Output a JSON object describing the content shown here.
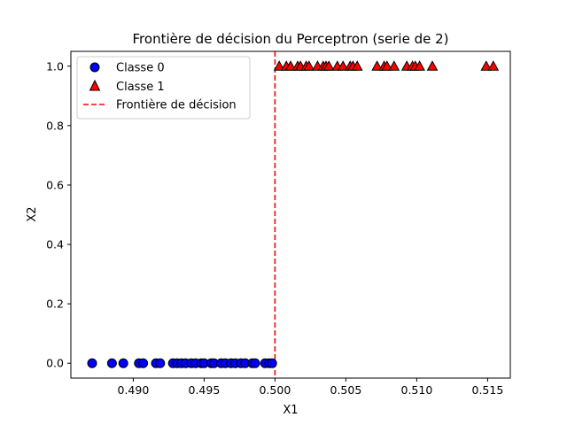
{
  "chart_data": {
    "type": "scatter",
    "title": "Frontière de décision du Perceptron (serie de 2)",
    "xlabel": "X1",
    "ylabel": "X2",
    "xlim": [
      0.4856,
      0.5166
    ],
    "ylim": [
      -0.05,
      1.05
    ],
    "xticks": [
      0.49,
      0.495,
      0.5,
      0.505,
      0.51,
      0.515
    ],
    "xtick_labels": [
      "0.490",
      "0.495",
      "0.500",
      "0.505",
      "0.510",
      "0.515"
    ],
    "yticks": [
      0.0,
      0.2,
      0.4,
      0.6,
      0.8,
      1.0
    ],
    "ytick_labels": [
      "0.0",
      "0.2",
      "0.4",
      "0.6",
      "0.8",
      "1.0"
    ],
    "grid": false,
    "legend_position": "top-left",
    "series": [
      {
        "name": "Classe 0",
        "marker": "circle",
        "color": "#0000ff",
        "edgecolor": "#000000",
        "points": [
          [
            0.4871,
            0
          ],
          [
            0.4885,
            0
          ],
          [
            0.4893,
            0
          ],
          [
            0.4904,
            0
          ],
          [
            0.4907,
            0
          ],
          [
            0.4916,
            0
          ],
          [
            0.4919,
            0
          ],
          [
            0.4928,
            0
          ],
          [
            0.4931,
            0
          ],
          [
            0.4934,
            0
          ],
          [
            0.4937,
            0
          ],
          [
            0.4941,
            0
          ],
          [
            0.4944,
            0
          ],
          [
            0.4948,
            0
          ],
          [
            0.495,
            0
          ],
          [
            0.4955,
            0
          ],
          [
            0.4957,
            0
          ],
          [
            0.4962,
            0
          ],
          [
            0.4965,
            0
          ],
          [
            0.4969,
            0
          ],
          [
            0.4972,
            0
          ],
          [
            0.4976,
            0
          ],
          [
            0.4979,
            0
          ],
          [
            0.4984,
            0
          ],
          [
            0.4986,
            0
          ],
          [
            0.4993,
            0
          ],
          [
            0.4996,
            0
          ],
          [
            0.4998,
            0
          ]
        ]
      },
      {
        "name": "Classe 1",
        "marker": "triangle",
        "color": "#ff0000",
        "edgecolor": "#000000",
        "points": [
          [
            0.5003,
            1
          ],
          [
            0.5008,
            1
          ],
          [
            0.5011,
            1
          ],
          [
            0.5016,
            1
          ],
          [
            0.5018,
            1
          ],
          [
            0.5022,
            1
          ],
          [
            0.5024,
            1
          ],
          [
            0.503,
            1
          ],
          [
            0.5034,
            1
          ],
          [
            0.5036,
            1
          ],
          [
            0.5038,
            1
          ],
          [
            0.5044,
            1
          ],
          [
            0.5048,
            1
          ],
          [
            0.5053,
            1
          ],
          [
            0.5055,
            1
          ],
          [
            0.5058,
            1
          ],
          [
            0.5072,
            1
          ],
          [
            0.5077,
            1
          ],
          [
            0.5079,
            1
          ],
          [
            0.5084,
            1
          ],
          [
            0.5093,
            1
          ],
          [
            0.5097,
            1
          ],
          [
            0.5099,
            1
          ],
          [
            0.5102,
            1
          ],
          [
            0.5111,
            1
          ],
          [
            0.5149,
            1
          ],
          [
            0.5154,
            1
          ]
        ]
      },
      {
        "name": "Frontière de décision",
        "type": "vline",
        "x": 0.5,
        "color": "#ff0000",
        "linestyle": "dashed"
      }
    ]
  }
}
